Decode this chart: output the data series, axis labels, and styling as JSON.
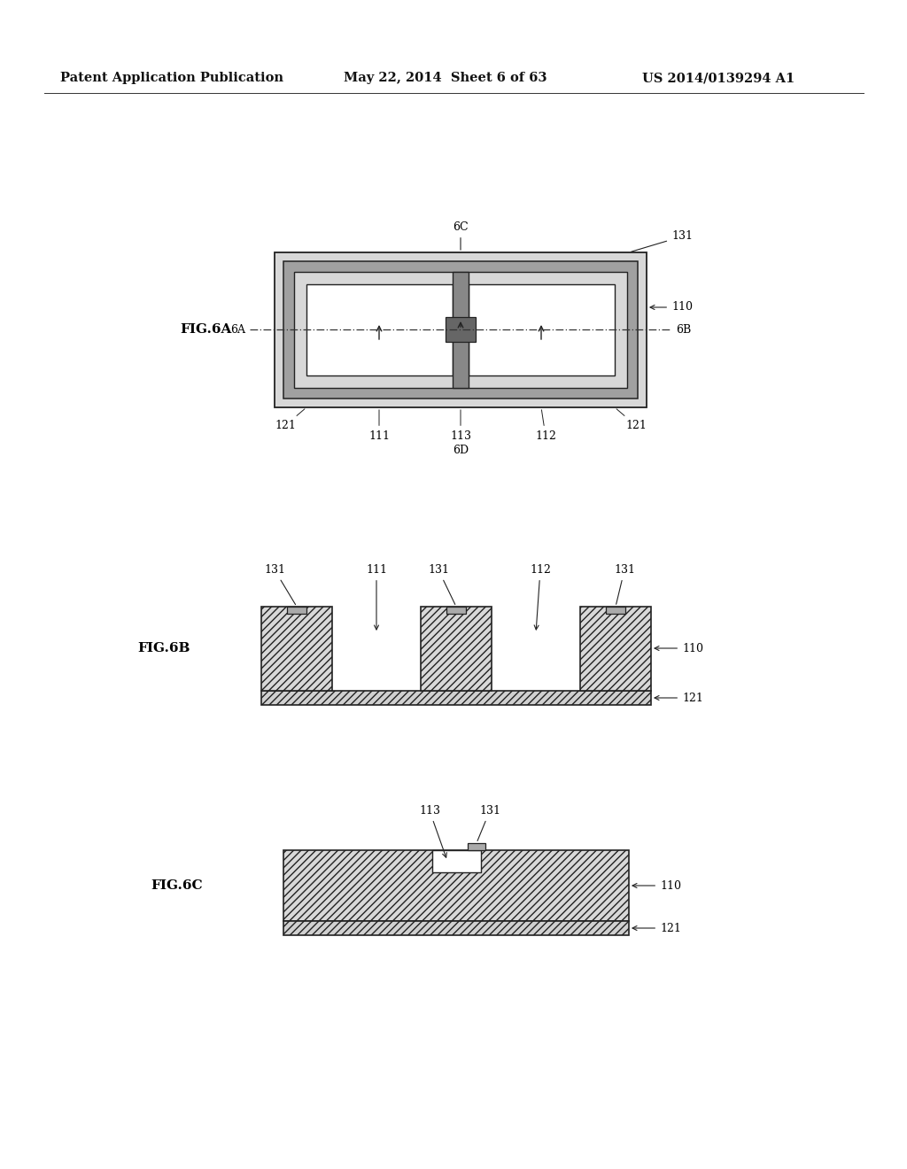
{
  "bg_color": "#ffffff",
  "header_left": "Patent Application Publication",
  "header_mid": "May 22, 2014  Sheet 6 of 63",
  "header_right": "US 2014/0139294 A1",
  "fig6a_label": "FIG.6A",
  "fig6b_label": "FIG.6B",
  "fig6c_label": "FIG.6C",
  "color_outer_fill": "#c8c8c8",
  "color_ring_fill": "#aaaaaa",
  "color_inner_fill": "#e0e0e0",
  "color_cavity": "#ffffff",
  "color_divider": "#888888",
  "color_hatch_fill": "#e0e0e0",
  "color_base_fill": "#d0d0d0",
  "color_small_sq": "#999999",
  "color_edge": "#222222"
}
